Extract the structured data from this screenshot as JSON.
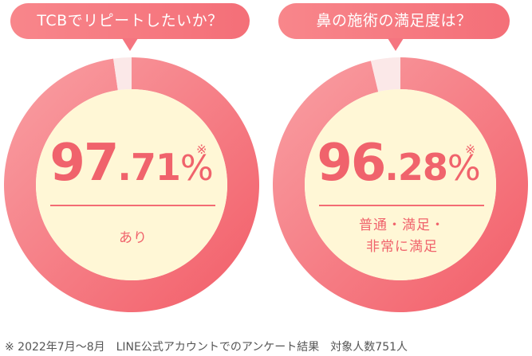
{
  "chart_data": [
    {
      "type": "pie",
      "title": "TCBでリピートしたいか？",
      "value_display": {
        "integer": "97",
        "decimal": ".71",
        "unit": "%"
      },
      "note_mark": "※",
      "label": "あり",
      "slices": [
        {
          "name": "あり",
          "value": 97.71
        },
        {
          "name": "",
          "value": 2.29
        }
      ],
      "colors": {
        "main": "#f46a73",
        "rest": "#fbe8e8",
        "center": "#fff7d6"
      }
    },
    {
      "type": "pie",
      "title": "鼻の施術の満足度は？",
      "value_display": {
        "integer": "96",
        "decimal": ".28",
        "unit": "%"
      },
      "note_mark": "※",
      "label": "普通・満足・\n非常に満足",
      "slices": [
        {
          "name": "普通・満足・非常に満足",
          "value": 96.28
        },
        {
          "name": "",
          "value": 3.72
        }
      ],
      "colors": {
        "main": "#f46a73",
        "rest": "#fbe8e8",
        "center": "#fff7d6"
      }
    }
  ],
  "footnote": "※ 2022年7月～8月　LINE公式アカウントでのアンケート結果　対象人数751人"
}
